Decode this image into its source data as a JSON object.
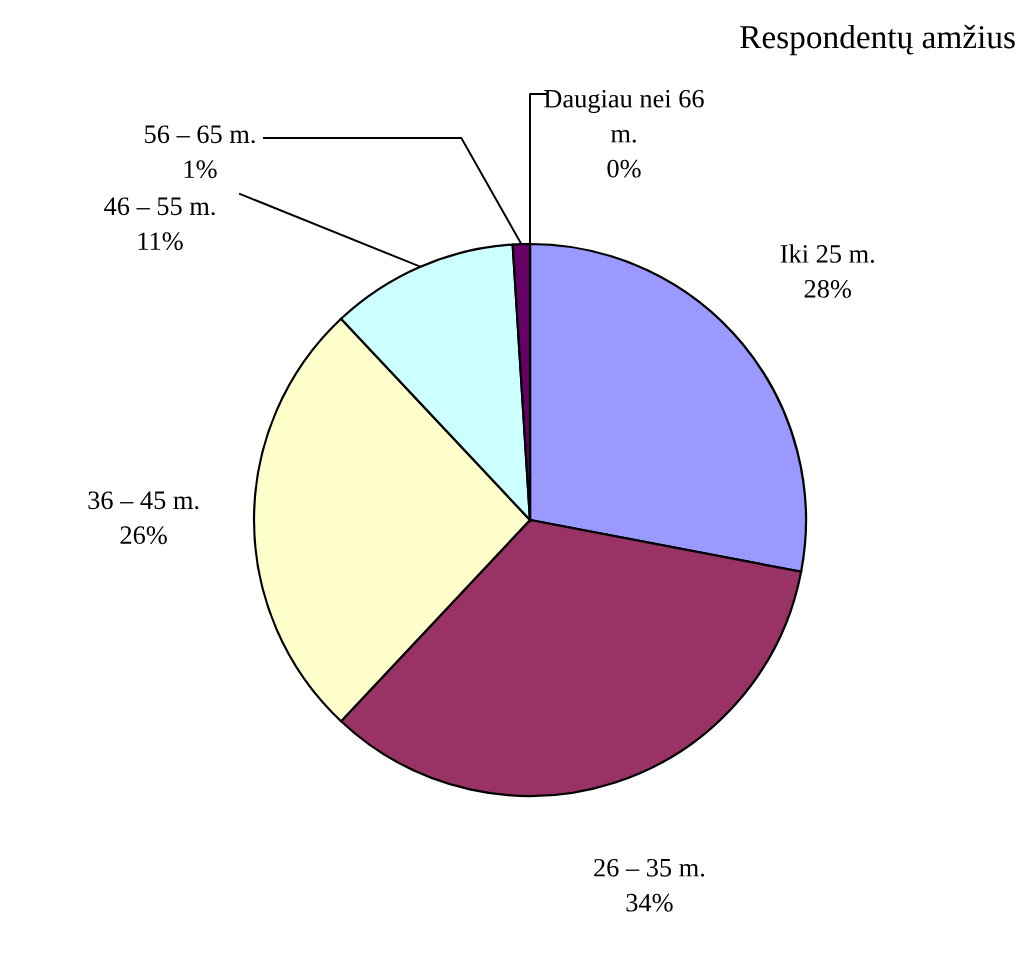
{
  "chart_data": {
    "type": "pie",
    "title": "Respondentų amžius",
    "categories": [
      "Iki 25 m.",
      "26 – 35 m.",
      "36 – 45 m.",
      "46 – 55 m.",
      "56 – 65 m.",
      "Daugiau nei 66 m."
    ],
    "values": [
      28,
      34,
      26,
      11,
      1,
      0
    ],
    "colors": [
      "#9999ff",
      "#993366",
      "#ffffcc",
      "#ccffff",
      "#660066",
      "#ff8080"
    ],
    "value_labels": [
      "28%",
      "34%",
      "26%",
      "11%",
      "1%",
      "0%"
    ]
  }
}
